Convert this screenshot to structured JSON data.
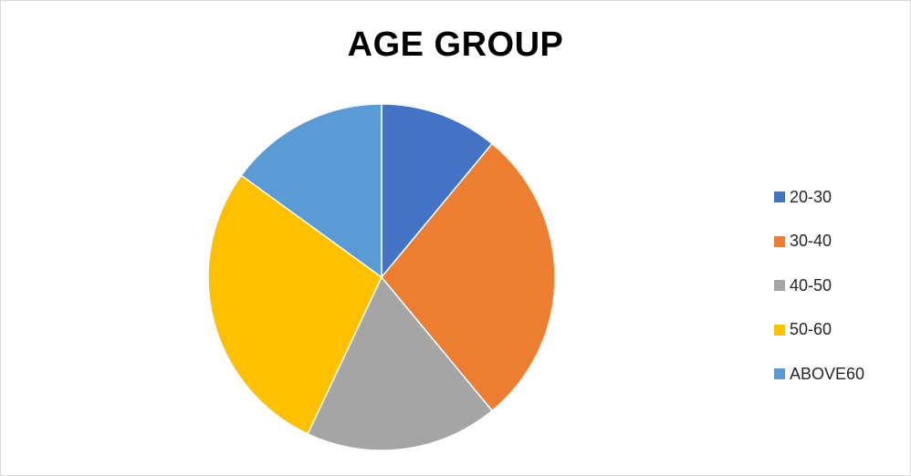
{
  "chart_data": {
    "type": "pie",
    "title": "AGE GROUP",
    "categories": [
      "20-30",
      "30-40",
      "40-50",
      "50-60",
      "ABOVE60"
    ],
    "values": [
      11,
      28,
      18,
      28,
      15
    ],
    "colors": [
      "#4472c4",
      "#ed7d31",
      "#a5a5a5",
      "#ffc000",
      "#5b9bd5"
    ],
    "start_angle_deg": 0,
    "direction": "clockwise",
    "legend_position": "right"
  }
}
